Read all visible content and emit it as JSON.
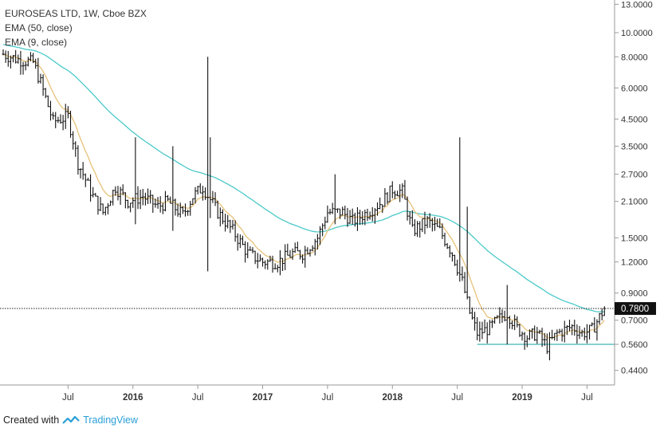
{
  "legend": {
    "title": "EUROSEAS LTD, 1W, Cboe BZX",
    "ema50": "EMA (50, close)",
    "ema9": "EMA (9, close)"
  },
  "footer": {
    "prefix": "Created with",
    "brand": "TradingView"
  },
  "colors": {
    "bars": "#111111",
    "ema50": "#4cc9c9",
    "ema9": "#e8c27a",
    "support": "#3fb6b6",
    "price_label_bg": "#111111",
    "price_label_text": "#ffffff"
  },
  "chart_data": {
    "type": "ohlc",
    "title": "EUROSEAS LTD, 1W, Cboe BZX",
    "y_scale": "log",
    "y_ticks": [
      "13.0000",
      "10.0000",
      "8.0000",
      "6.0000",
      "4.5000",
      "3.5000",
      "2.7000",
      "2.1000",
      "1.5000",
      "1.2000",
      "0.9000",
      "0.7000",
      "0.5600",
      "0.4400"
    ],
    "y_tick_values": [
      13,
      10,
      8,
      6,
      4.5,
      3.5,
      2.7,
      2.1,
      1.5,
      1.2,
      0.9,
      0.7,
      0.56,
      0.44
    ],
    "x_ticks": [
      {
        "label": "Jul",
        "year": false
      },
      {
        "label": "2016",
        "year": true
      },
      {
        "label": "Jul",
        "year": false
      },
      {
        "label": "2017",
        "year": true
      },
      {
        "label": "Jul",
        "year": false
      },
      {
        "label": "2018",
        "year": true
      },
      {
        "label": "Jul",
        "year": false
      },
      {
        "label": "2019",
        "year": true
      },
      {
        "label": "Jul",
        "year": false
      }
    ],
    "x_tick_weeks": [
      26,
      52,
      78,
      104,
      130,
      156,
      182,
      208,
      234
    ],
    "total_weeks": 242,
    "last_price_label": "0.7800",
    "last_price": 0.78,
    "support_level": 0.56,
    "support_from_week": 190,
    "anchors": [
      [
        0,
        8.2
      ],
      [
        6,
        7.8
      ],
      [
        12,
        7.6
      ],
      [
        15,
        6.3
      ],
      [
        20,
        4.4
      ],
      [
        26,
        4.6
      ],
      [
        30,
        3.0
      ],
      [
        36,
        2.2
      ],
      [
        40,
        1.9
      ],
      [
        45,
        2.4
      ],
      [
        50,
        2.1
      ],
      [
        56,
        2.2
      ],
      [
        62,
        2.0
      ],
      [
        66,
        2.1
      ],
      [
        72,
        1.85
      ],
      [
        76,
        2.2
      ],
      [
        80,
        2.4
      ],
      [
        86,
        1.9
      ],
      [
        92,
        1.6
      ],
      [
        98,
        1.3
      ],
      [
        104,
        1.2
      ],
      [
        110,
        1.2
      ],
      [
        116,
        1.3
      ],
      [
        120,
        1.3
      ],
      [
        126,
        1.5
      ],
      [
        130,
        1.9
      ],
      [
        136,
        1.9
      ],
      [
        140,
        1.75
      ],
      [
        146,
        1.9
      ],
      [
        152,
        2.1
      ],
      [
        156,
        2.35
      ],
      [
        160,
        2.3
      ],
      [
        164,
        1.6
      ],
      [
        170,
        1.75
      ],
      [
        175,
        1.6
      ],
      [
        180,
        1.3
      ],
      [
        184,
        1.0
      ],
      [
        187,
        0.75
      ],
      [
        190,
        0.62
      ],
      [
        195,
        0.65
      ],
      [
        198,
        0.7
      ],
      [
        202,
        0.75
      ],
      [
        206,
        0.65
      ],
      [
        210,
        0.6
      ],
      [
        214,
        0.62
      ],
      [
        218,
        0.55
      ],
      [
        222,
        0.62
      ],
      [
        228,
        0.66
      ],
      [
        232,
        0.62
      ],
      [
        236,
        0.64
      ],
      [
        241,
        0.78
      ]
    ],
    "spikes": [
      {
        "week": 82,
        "high": 8.0,
        "low": 1.1
      },
      {
        "week": 83,
        "high": 3.8,
        "low": 1.8
      },
      {
        "week": 53,
        "high": 3.8,
        "low": 1.7
      },
      {
        "week": 68,
        "high": 3.5,
        "low": 1.6
      },
      {
        "week": 133,
        "high": 2.7,
        "low": 1.7
      },
      {
        "week": 183,
        "high": 3.8,
        "low": 1.0
      },
      {
        "week": 186,
        "high": 2.0,
        "low": 1.1
      },
      {
        "week": 202,
        "high": 0.97,
        "low": 0.56
      }
    ]
  }
}
